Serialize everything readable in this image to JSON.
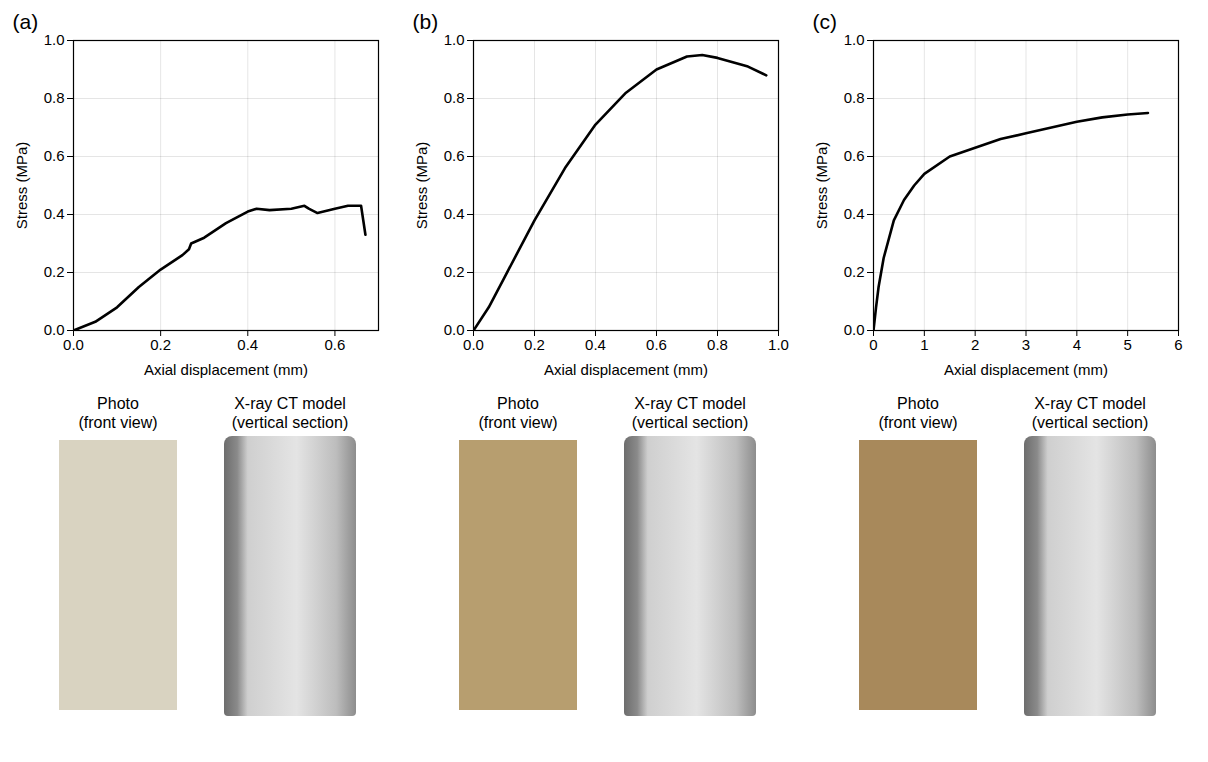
{
  "chart_data": [
    {
      "type": "line",
      "title": "(a)",
      "xlabel": "Axial displacement (mm)",
      "ylabel": "Stress (MPa)",
      "grid": true,
      "color": "#000000",
      "xlim": [
        0,
        0.7
      ],
      "xticks": [
        {
          "value": 0,
          "label": "0.0"
        },
        0.2,
        0.4,
        0.6
      ],
      "ylim": [
        0,
        1
      ],
      "yticks": [
        {
          "value": 0,
          "label": "0.0"
        },
        0.2,
        0.4,
        0.6,
        0.8,
        {
          "value": 1,
          "label": "1.0"
        }
      ],
      "x": [
        0,
        0.05,
        0.1,
        0.15,
        0.2,
        0.25,
        0.265,
        0.27,
        0.3,
        0.35,
        0.4,
        0.42,
        0.45,
        0.5,
        0.53,
        0.54,
        0.56,
        0.6,
        0.63,
        0.66,
        0.665,
        0.67
      ],
      "values": [
        0,
        0.03,
        0.08,
        0.15,
        0.21,
        0.26,
        0.28,
        0.3,
        0.32,
        0.37,
        0.41,
        0.42,
        0.415,
        0.42,
        0.43,
        0.42,
        0.405,
        0.42,
        0.43,
        0.43,
        0.38,
        0.33
      ]
    },
    {
      "type": "line",
      "title": "(b)",
      "xlabel": "Axial displacement (mm)",
      "ylabel": "Stress (MPa)",
      "grid": true,
      "color": "#000000",
      "xlim": [
        0,
        1
      ],
      "xticks": [
        {
          "value": 0,
          "label": "0.0"
        },
        0.2,
        0.4,
        0.6,
        0.8,
        {
          "value": 1,
          "label": "1.0"
        }
      ],
      "ylim": [
        0,
        1
      ],
      "yticks": [
        {
          "value": 0,
          "label": "0.0"
        },
        0.2,
        0.4,
        0.6,
        0.8,
        {
          "value": 1,
          "label": "1.0"
        }
      ],
      "x": [
        0,
        0.05,
        0.1,
        0.2,
        0.3,
        0.4,
        0.5,
        0.6,
        0.7,
        0.75,
        0.8,
        0.85,
        0.9,
        0.96
      ],
      "values": [
        0,
        0.08,
        0.18,
        0.38,
        0.56,
        0.71,
        0.82,
        0.9,
        0.945,
        0.95,
        0.94,
        0.925,
        0.91,
        0.88
      ]
    },
    {
      "type": "line",
      "title": "(c)",
      "xlabel": "Axial displacement (mm)",
      "ylabel": "Stress (MPa)",
      "grid": true,
      "color": "#000000",
      "xlim": [
        0,
        6
      ],
      "xticks": [
        0,
        1,
        2,
        3,
        4,
        5,
        6
      ],
      "ylim": [
        0,
        1
      ],
      "yticks": [
        {
          "value": 0,
          "label": "0.0"
        },
        0.2,
        0.4,
        0.6,
        0.8,
        {
          "value": 1,
          "label": "1.0"
        }
      ],
      "x": [
        0,
        0.05,
        0.1,
        0.2,
        0.4,
        0.6,
        0.8,
        1,
        1.5,
        2,
        2.5,
        3,
        3.5,
        4,
        4.5,
        5,
        5.4
      ],
      "values": [
        0,
        0.08,
        0.15,
        0.25,
        0.38,
        0.45,
        0.5,
        0.54,
        0.6,
        0.63,
        0.66,
        0.68,
        0.7,
        0.72,
        0.735,
        0.745,
        0.75
      ]
    }
  ],
  "image_captions": [
    [
      "Photo (front view)",
      "X-ray CT model (vertical section)"
    ],
    [
      "Photo (front view)",
      "X-ray CT model (vertical section)"
    ],
    [
      "Photo (front view)",
      "X-ray CT model (vertical section)"
    ]
  ]
}
